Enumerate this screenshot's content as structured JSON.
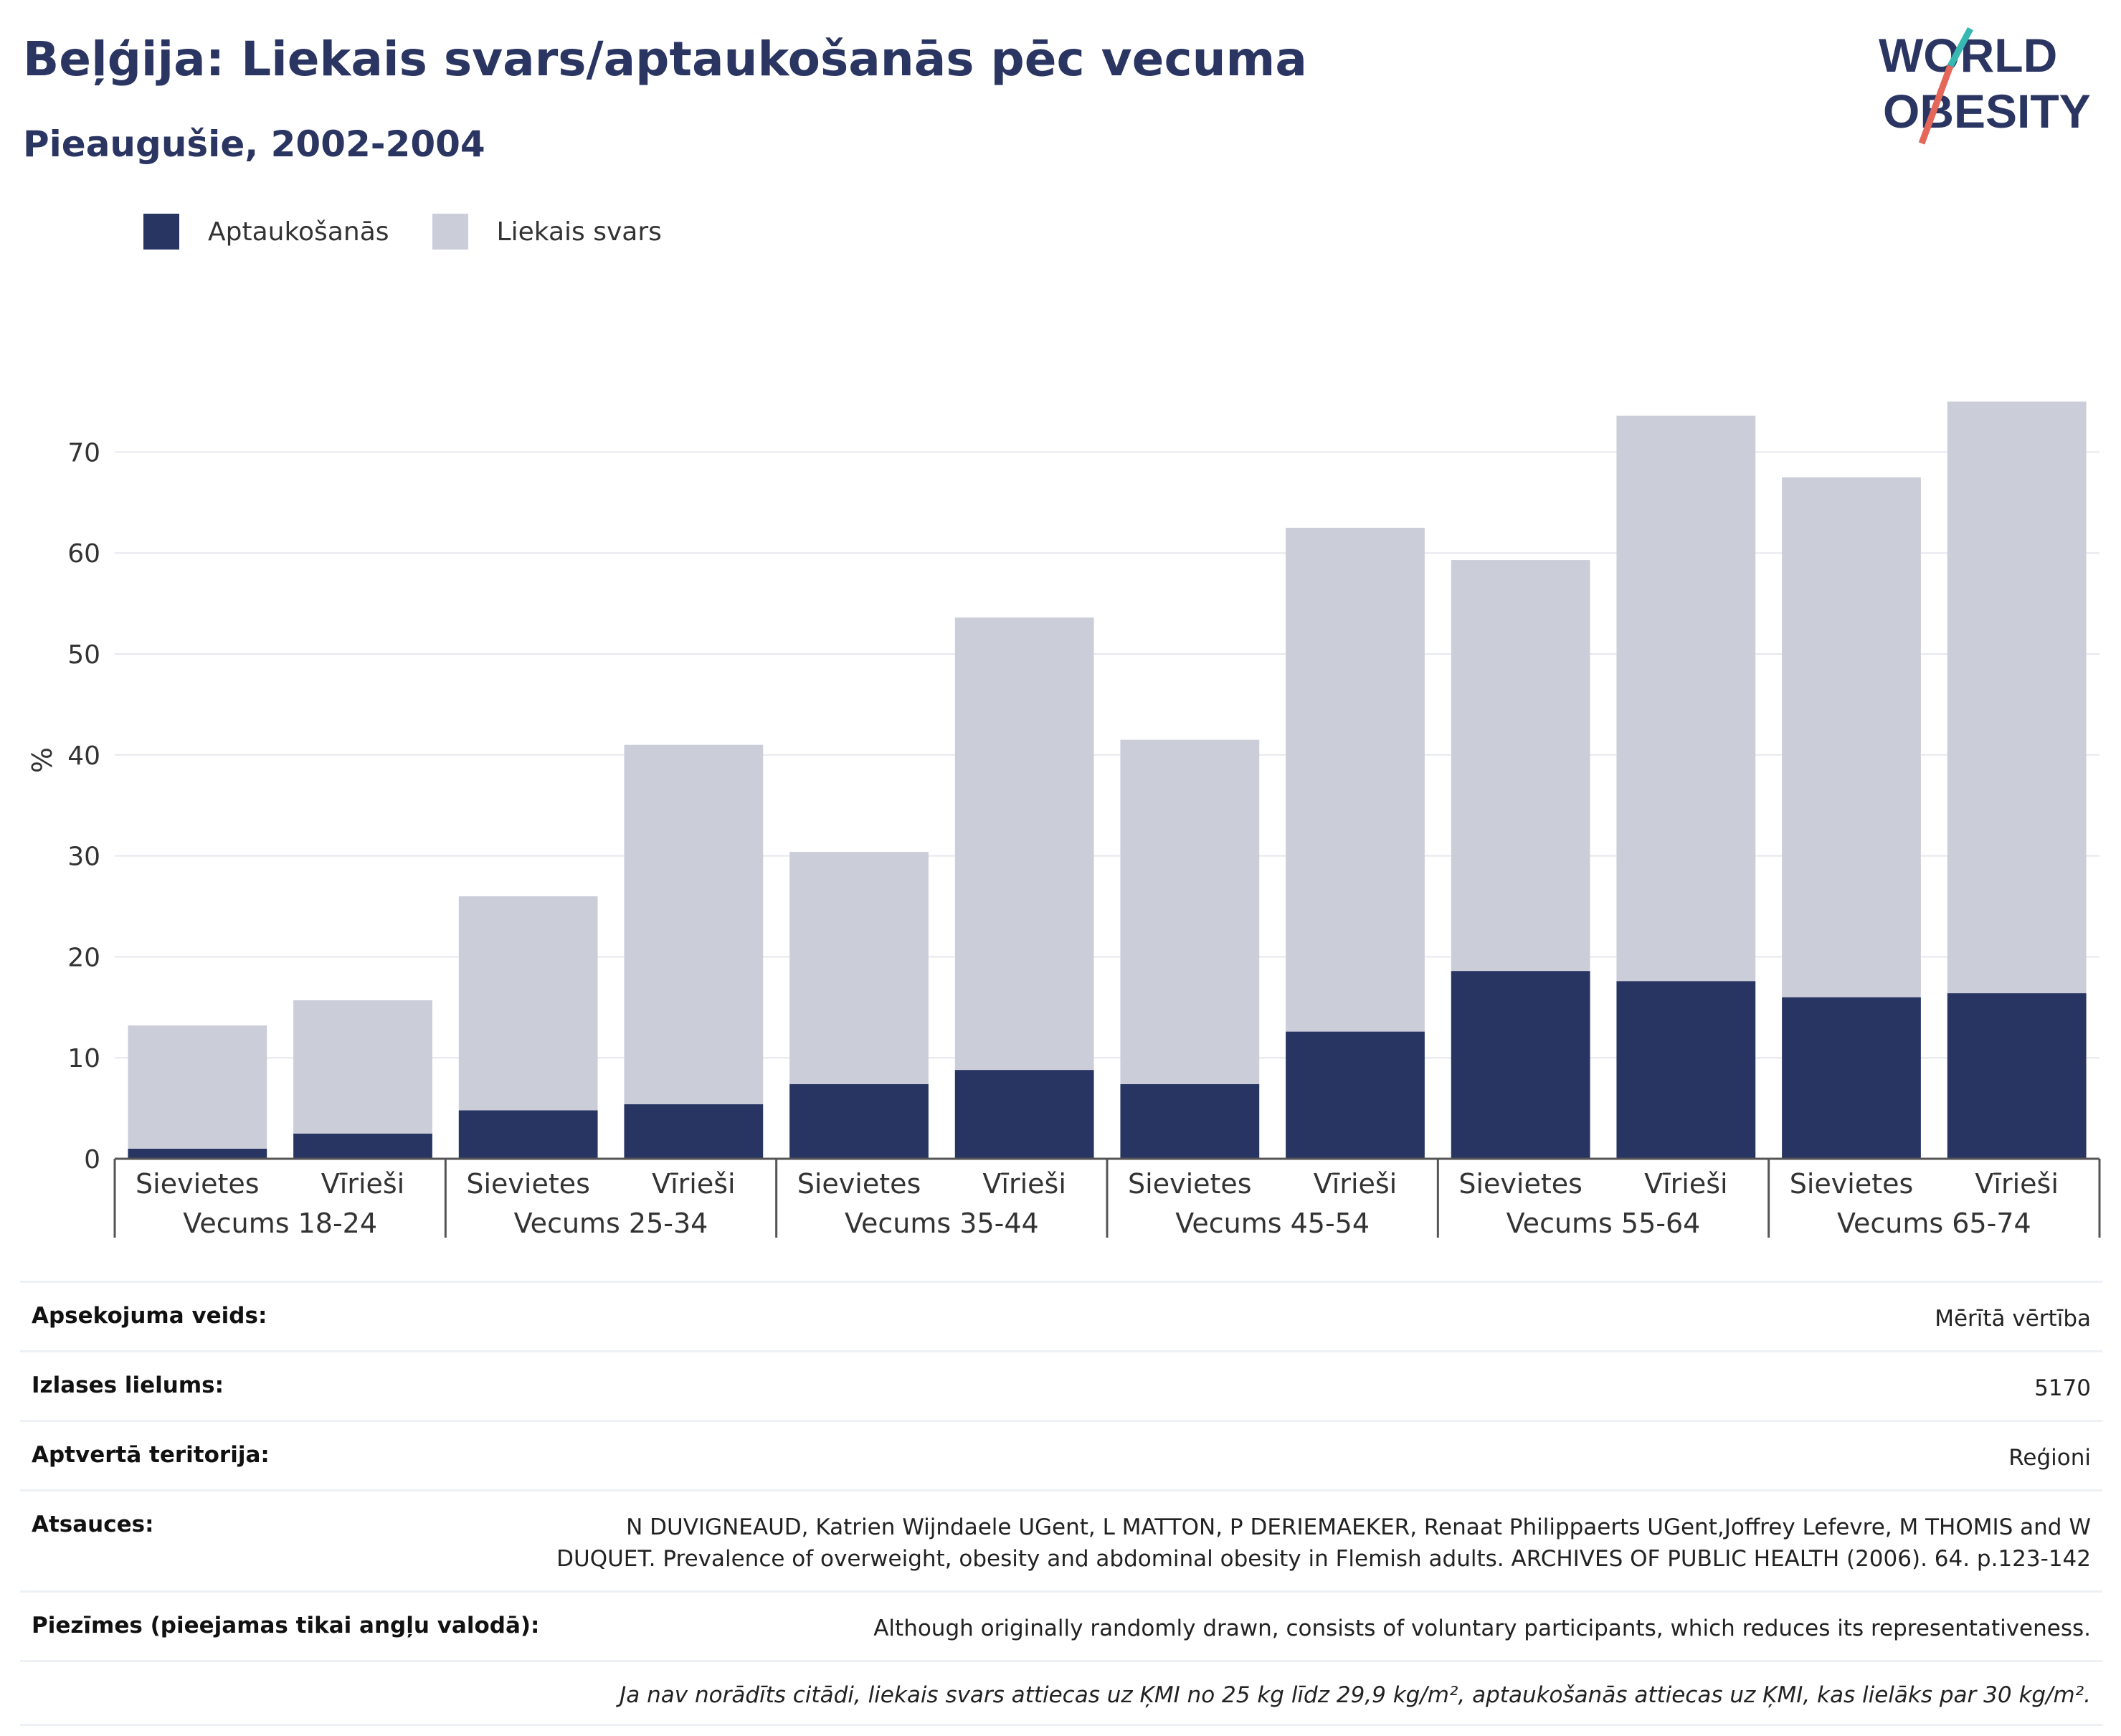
{
  "header": {
    "title": "Beļģija: Liekais svars/aptaukošanās pēc vecuma",
    "subtitle": "Pieaugušie, 2002-2004"
  },
  "logo": {
    "line1": "WORLD",
    "line2": "OBESITY",
    "accent_colors": [
      "#37b8b2",
      "#e5675a"
    ],
    "text_color": "#2a3562"
  },
  "legend": [
    {
      "label": "Aptaukošanās",
      "color": "#283462"
    },
    {
      "label": "Liekais svars",
      "color": "#cbcdd9"
    }
  ],
  "chart_data": {
    "type": "bar",
    "stacked": true,
    "ylabel": "%",
    "ylim": [
      0,
      75
    ],
    "yticks": [
      0,
      10,
      20,
      30,
      40,
      50,
      60,
      70
    ],
    "grid": true,
    "groups": [
      "Vecums 18-24",
      "Vecums 25-34",
      "Vecums 35-44",
      "Vecums 45-54",
      "Vecums 55-64",
      "Vecums 65-74"
    ],
    "categories": [
      "Sievietes",
      "Vīrieši",
      "Sievietes",
      "Vīrieši",
      "Sievietes",
      "Vīrieši",
      "Sievietes",
      "Vīrieši",
      "Sievietes",
      "Vīrieši",
      "Sievietes",
      "Vīrieši"
    ],
    "series": [
      {
        "name": "Aptaukošanās",
        "color": "#283462",
        "values": [
          1.0,
          2.5,
          4.8,
          5.4,
          7.4,
          8.8,
          7.4,
          12.6,
          18.6,
          17.6,
          16.0,
          16.4
        ]
      },
      {
        "name": "Liekais svars",
        "color": "#cbcdd9",
        "values": [
          12.2,
          13.2,
          21.2,
          35.6,
          23.0,
          44.8,
          34.1,
          49.9,
          40.7,
          56.0,
          51.5,
          58.6
        ]
      }
    ],
    "totals": [
      13.2,
      15.7,
      26.0,
      41.0,
      30.4,
      53.6,
      41.5,
      62.5,
      59.3,
      73.6,
      67.5,
      75.0
    ]
  },
  "meta": [
    {
      "key": "Apsekojuma veids:",
      "value": "Mērītā vērtība"
    },
    {
      "key": "Izlases lielums:",
      "value": "5170"
    },
    {
      "key": "Aptvertā teritorija:",
      "value": "Reģioni"
    },
    {
      "key": "Atsauces:",
      "value": "N DUVIGNEAUD, Katrien Wijndaele UGent, L MATTON, P DERIEMAEKER, Renaat Philippaerts UGent,Joffrey Lefevre, M THOMIS and W DUQUET. Prevalence of overweight, obesity and abdominal obesity in Flemish adults. ARCHIVES OF PUBLIC HEALTH (2006). 64. p.123-142"
    },
    {
      "key": "Piezīmes (pieejamas tikai angļu valodā):",
      "value": "Although originally randomly drawn, consists of voluntary participants, which reduces its representativeness."
    }
  ],
  "footnote": "Ja nav norādīts citādi, liekais svars attiecas uz ĶMI no 25 kg līdz 29,9 kg/m², aptaukošanās attiecas uz ĶMI, kas lielāks par 30 kg/m²."
}
